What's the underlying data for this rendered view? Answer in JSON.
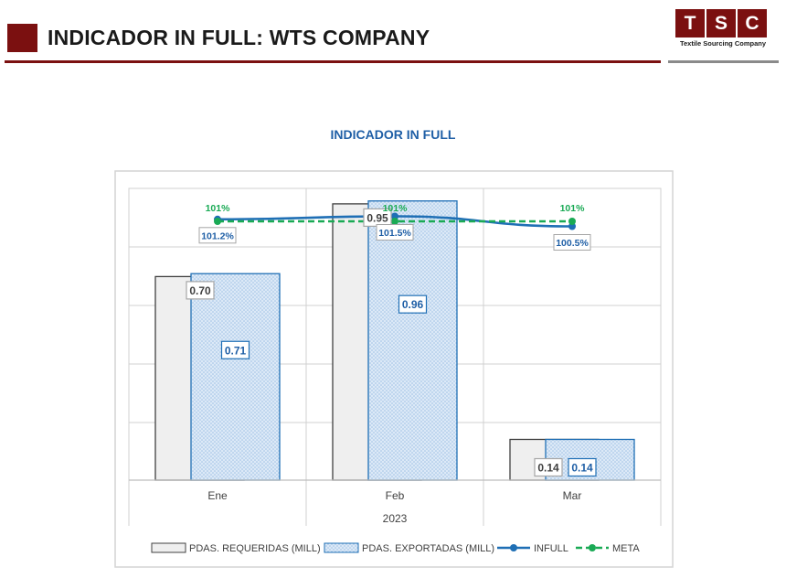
{
  "header": {
    "title": "INDICADOR IN FULL: WTS COMPANY",
    "logo_letters": [
      "T",
      "S",
      "C"
    ],
    "logo_tagline": "Textile Sourcing Company",
    "brand_color": "#7b1010"
  },
  "chart_data": {
    "type": "bar",
    "title": "INDICADOR IN FULL",
    "categories": [
      "Ene",
      "Feb",
      "Mar"
    ],
    "x_group_label": "2023",
    "series": [
      {
        "name": "PDAS. REQUERIDAS (MILL)",
        "kind": "bar",
        "values": [
          0.7,
          0.95,
          0.14
        ],
        "labels": [
          "0.70",
          "0.95",
          "0.14"
        ],
        "color": "#efefef",
        "stroke": "#404040"
      },
      {
        "name": "PDAS. EXPORTADAS (MILL)",
        "kind": "bar",
        "values": [
          0.71,
          0.96,
          0.14
        ],
        "labels": [
          "0.71",
          "0.96",
          "0.14"
        ],
        "color": "#dce9f7",
        "stroke": "#1f6fb5"
      },
      {
        "name": "INFULL",
        "kind": "line",
        "values": [
          101.2,
          101.5,
          100.5
        ],
        "labels": [
          "101.2%",
          "101.5%",
          "100.5%"
        ],
        "color": "#1f6fb5",
        "dashed": false
      },
      {
        "name": "META",
        "kind": "line",
        "values": [
          101,
          101,
          101
        ],
        "labels": [
          "101%",
          "101%",
          "101%"
        ],
        "color": "#1aaa55",
        "dashed": true
      }
    ],
    "grid": true,
    "legend": "bottom"
  }
}
